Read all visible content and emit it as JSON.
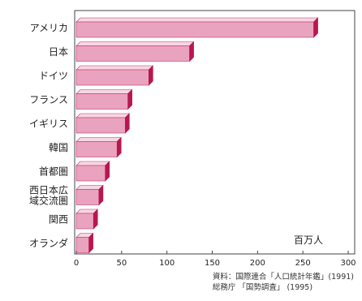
{
  "chart_data": {
    "type": "bar",
    "orientation": "horizontal",
    "categories": [
      "アメリカ",
      "日本",
      "ドイツ",
      "フランス",
      "イギリス",
      "韓国",
      "首都圏",
      "西日本広\n域交流圏",
      "関西",
      "オランダ"
    ],
    "values": [
      262,
      125,
      80,
      57,
      54,
      45,
      32,
      25,
      19,
      14
    ],
    "unit_label": "百万人",
    "xticks": [
      0,
      50,
      100,
      150,
      200,
      250,
      300
    ],
    "xlim": [
      0,
      300
    ],
    "grid": false,
    "bar_color": "#e9a3bf",
    "bar_side_color": "#b8174e",
    "bar_top_color": "#f8d6e3",
    "bar_outline": "#c1356c"
  },
  "source": {
    "line1": "資料：国際連合「人口統計年鑑」(1991)",
    "line2": "総務庁 「国勢調査」 (1995)"
  }
}
